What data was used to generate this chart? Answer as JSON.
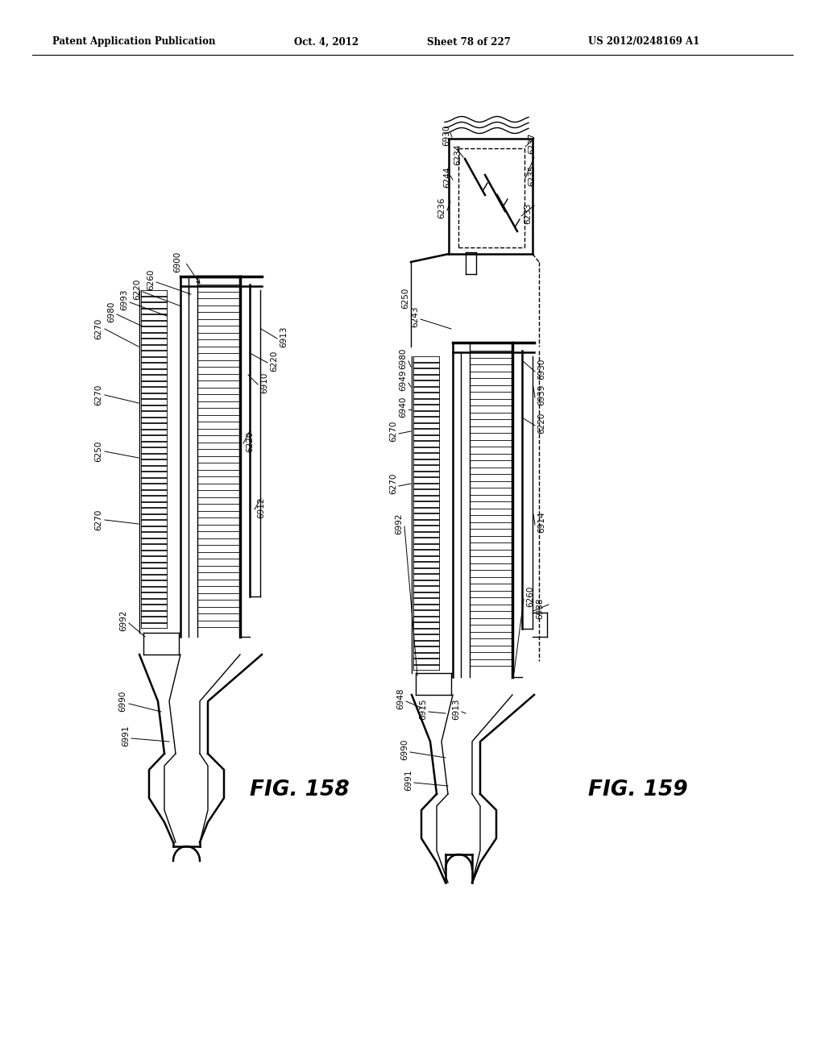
{
  "header_left": "Patent Application Publication",
  "header_middle": "Oct. 4, 2012",
  "header_right1": "Sheet 78 of 227",
  "header_right2": "US 2012/0248169 A1",
  "fig158_label": "FIG. 158",
  "fig159_label": "FIG. 159",
  "background_color": "#ffffff",
  "line_color": "#000000"
}
